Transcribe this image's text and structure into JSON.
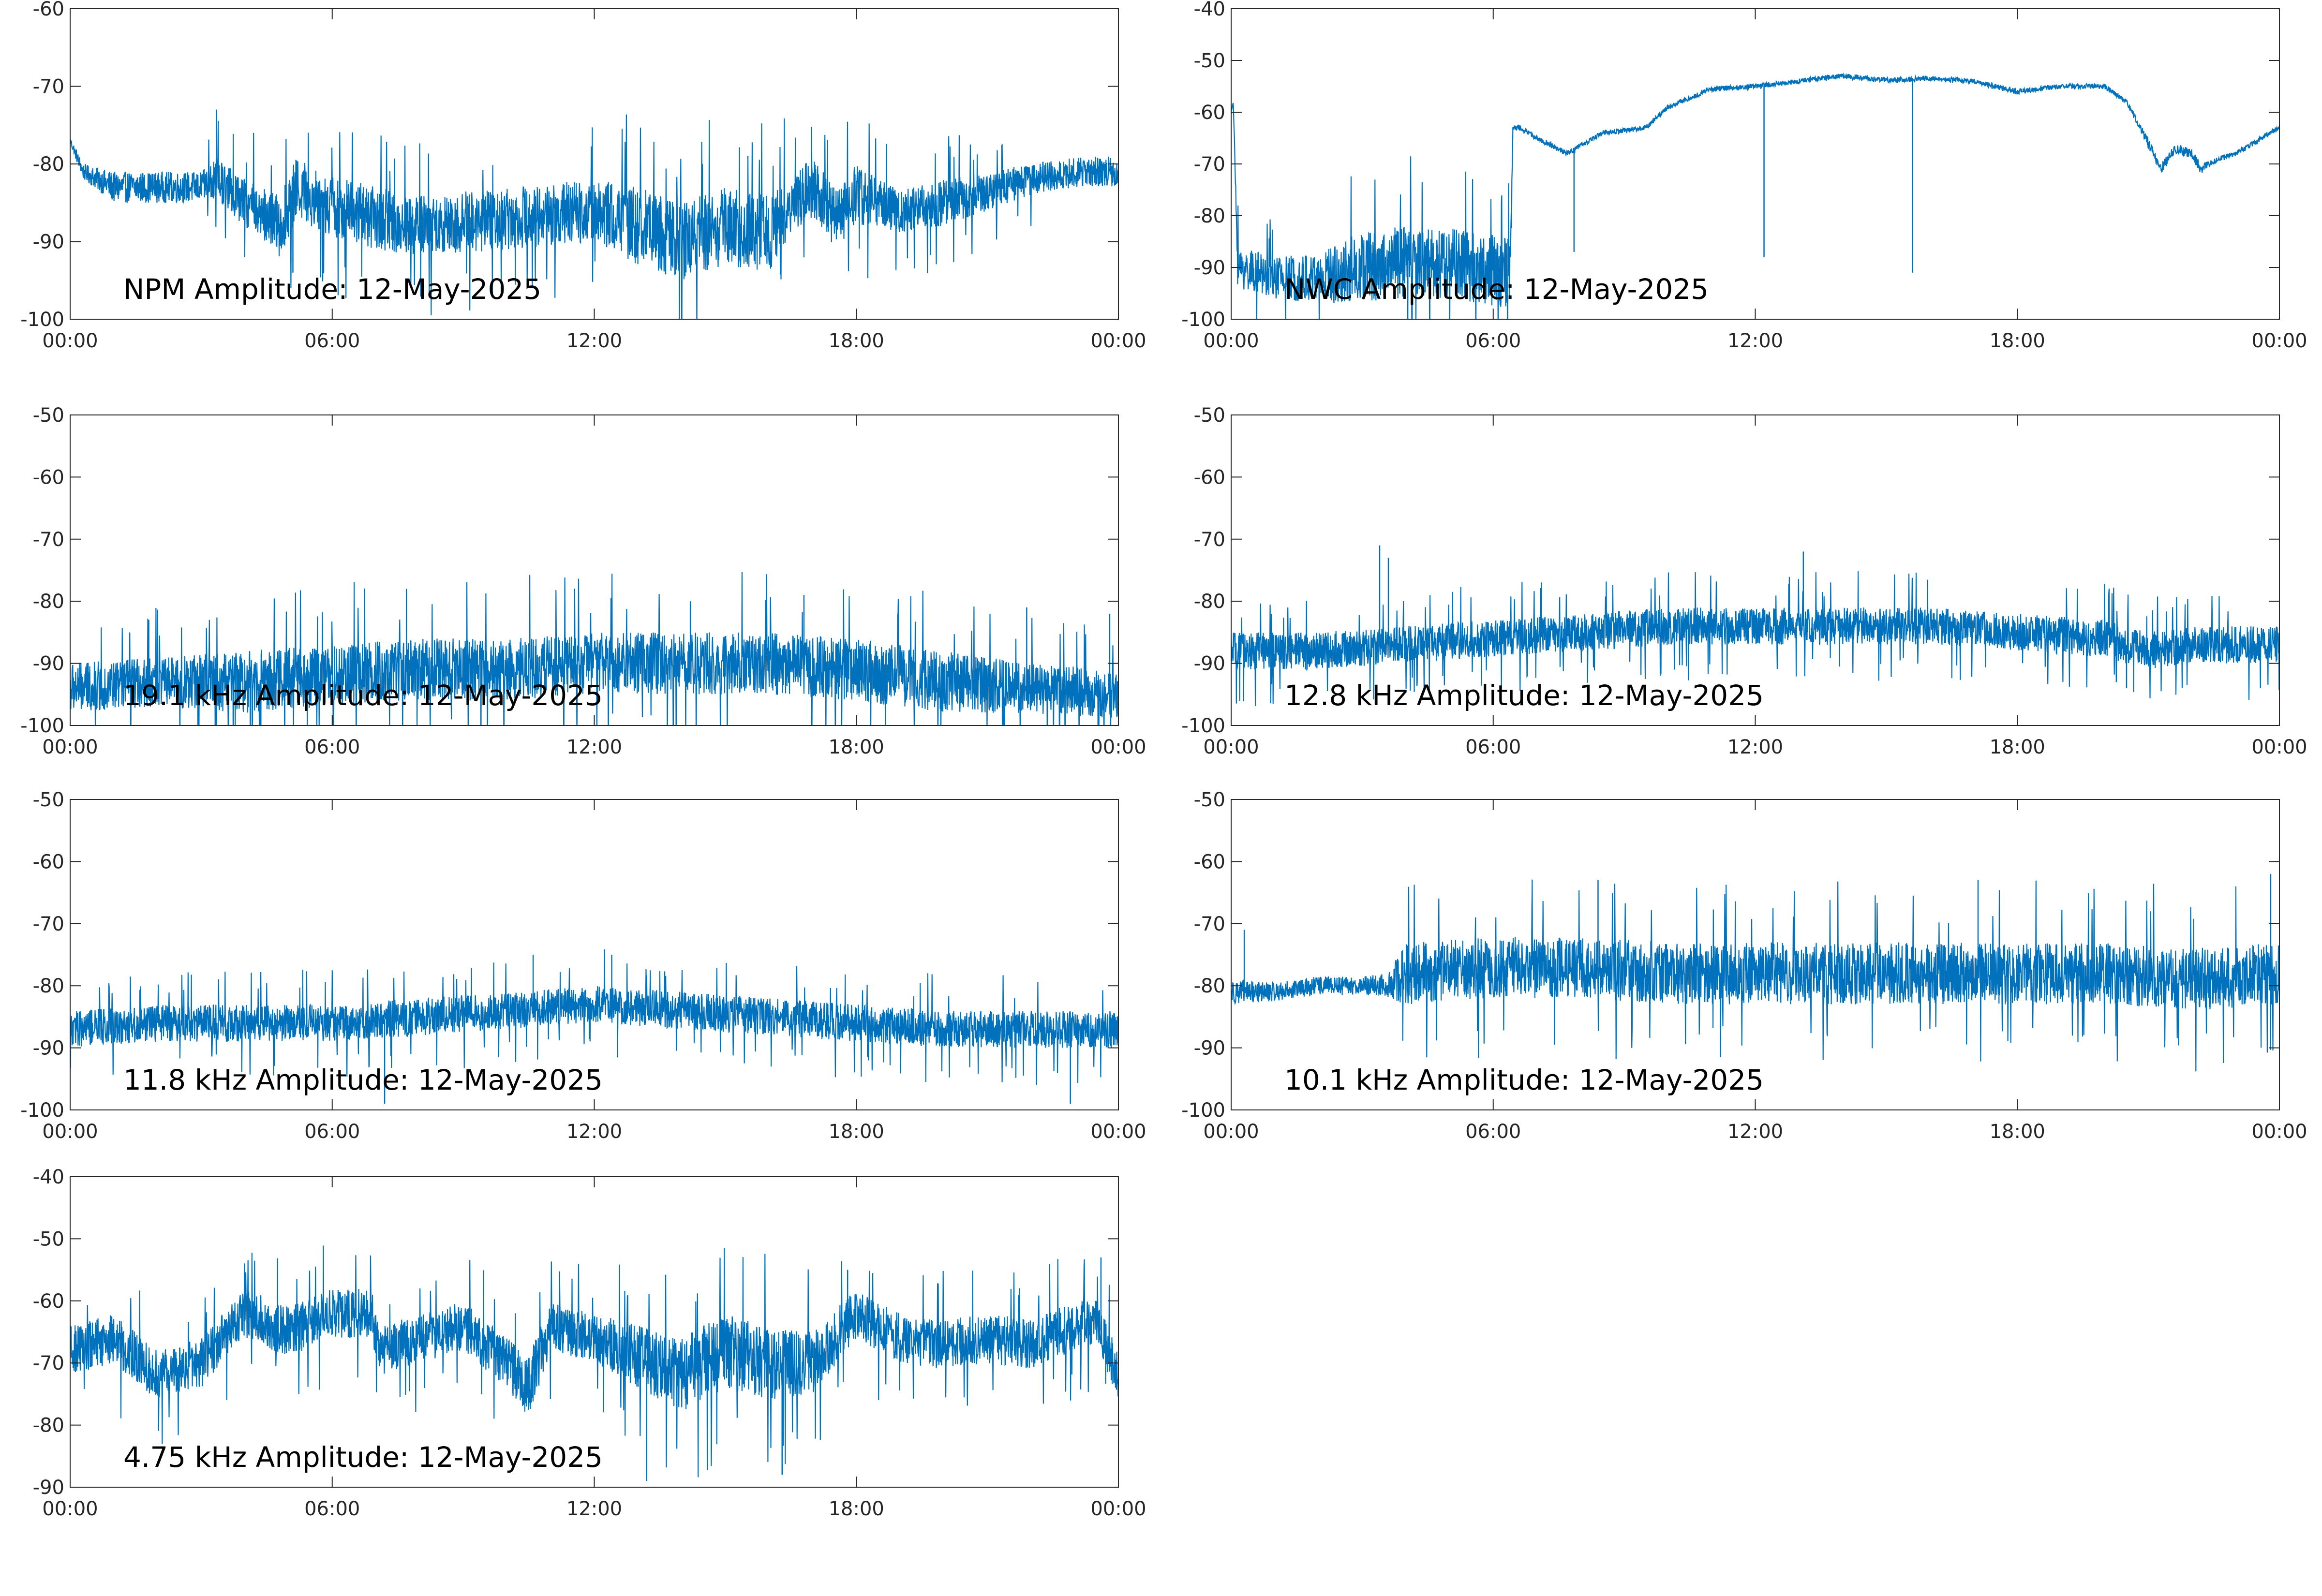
{
  "figure": {
    "background": "#ffffff",
    "line_color": "#0072bd",
    "axes_color": "#262626"
  },
  "chart_data": [
    {
      "type": "line",
      "annotation": "NPM Amplitude: 12-May-2025",
      "xlim": [
        "00:00",
        "00:00"
      ],
      "xticks": [
        "00:00",
        "06:00",
        "12:00",
        "18:00",
        "00:00"
      ],
      "ylim": [
        -100,
        -60
      ],
      "yticks": [
        -100,
        -90,
        -80,
        -70,
        -60
      ],
      "grid": false,
      "series": [
        {
          "x_hours": [
            0,
            0.3,
            1,
            2,
            3,
            3.4,
            4,
            4.8,
            5.2,
            5.8,
            7,
            8,
            10,
            12,
            13,
            14,
            15,
            16,
            16.5,
            17,
            17.5,
            18,
            18.5,
            19,
            20,
            22,
            23,
            24
          ],
          "values": [
            -77,
            -81,
            -83,
            -83,
            -83,
            -82,
            -85,
            -88,
            -83,
            -85,
            -87,
            -88,
            -87,
            -86,
            -88,
            -90,
            -88,
            -89,
            -85,
            -83,
            -87,
            -84,
            -85,
            -86,
            -85,
            -82,
            -81,
            -81
          ],
          "noise": [
            0.5,
            1,
            2,
            2,
            2,
            3,
            3,
            4,
            4,
            4,
            4,
            4,
            4,
            4,
            5,
            5,
            5,
            5,
            4,
            4,
            4,
            4,
            3,
            3,
            3,
            2,
            2,
            2
          ],
          "spikes": [
            {
              "h": 3.35,
              "v": -73
            },
            {
              "h": 5.1,
              "v": -94
            }
          ]
        }
      ]
    },
    {
      "type": "line",
      "annotation": "NWC Amplitude: 12-May-2025",
      "xlim": [
        "00:00",
        "00:00"
      ],
      "xticks": [
        "00:00",
        "06:00",
        "12:00",
        "18:00",
        "00:00"
      ],
      "ylim": [
        -100,
        -40
      ],
      "yticks": [
        -100,
        -90,
        -80,
        -70,
        -60,
        -50,
        -40
      ],
      "grid": false,
      "series": [
        {
          "x_hours": [
            0,
            0.05,
            0.15,
            1,
            2,
            3,
            4,
            5,
            6.4,
            6.45,
            6.6,
            7,
            7.7,
            8.5,
            9.5,
            10,
            11,
            12,
            13,
            14,
            15,
            16,
            17,
            18,
            19,
            20,
            20.5,
            21,
            21.3,
            21.6,
            22,
            22.2,
            22.6,
            23,
            24
          ],
          "values": [
            -60,
            -58,
            -90,
            -92,
            -92,
            -90,
            -89,
            -89,
            -91,
            -63,
            -63,
            -65,
            -68,
            -64,
            -63,
            -59,
            -55.5,
            -55,
            -54,
            -53,
            -53.8,
            -53.5,
            -54,
            -56,
            -55,
            -55,
            -58,
            -66,
            -71,
            -67,
            -68,
            -71,
            -69,
            -68,
            -63
          ],
          "noise": [
            0,
            0,
            4,
            4,
            5,
            7,
            7,
            7,
            7,
            0.5,
            0.5,
            0.5,
            0.5,
            0.5,
            0.5,
            0.5,
            0.5,
            0.5,
            0.5,
            0.5,
            0.5,
            0.5,
            0.5,
            0.5,
            0.5,
            0.5,
            0.5,
            1,
            1,
            1,
            1,
            1,
            0.5,
            0.5,
            0.5
          ],
          "spikes": [
            {
              "h": 7.85,
              "v": -87
            },
            {
              "h": 12.2,
              "v": -88
            },
            {
              "h": 15.6,
              "v": -91
            }
          ]
        }
      ]
    },
    {
      "type": "line",
      "annotation": "19.1 kHz Amplitude: 12-May-2025",
      "xlim": [
        "00:00",
        "00:00"
      ],
      "xticks": [
        "00:00",
        "06:00",
        "12:00",
        "18:00",
        "00:00"
      ],
      "ylim": [
        -100,
        -50
      ],
      "yticks": [
        -100,
        -90,
        -80,
        -70,
        -60,
        -50
      ],
      "grid": false,
      "series": [
        {
          "x_hours": [
            0,
            2,
            4,
            6,
            8,
            10,
            12,
            14,
            16,
            18,
            20,
            22,
            24
          ],
          "values": [
            -94,
            -93,
            -93,
            -92,
            -91,
            -91,
            -90,
            -90,
            -90,
            -91,
            -93,
            -94,
            -95
          ],
          "noise": [
            4,
            4,
            5,
            5,
            5,
            5,
            5,
            5,
            5,
            5,
            5,
            4,
            4
          ],
          "spikes": [
            {
              "h": 1.8,
              "v": -83
            },
            {
              "h": 7.7,
              "v": -78
            },
            {
              "h": 14.2,
              "v": -80
            },
            {
              "h": 16.8,
              "v": -79
            },
            {
              "h": 21.9,
              "v": -81
            },
            {
              "h": 23.8,
              "v": -82
            }
          ]
        }
      ]
    },
    {
      "type": "line",
      "annotation": "12.8 kHz Amplitude: 12-May-2025",
      "xlim": [
        "00:00",
        "00:00"
      ],
      "xticks": [
        "00:00",
        "06:00",
        "12:00",
        "18:00",
        "00:00"
      ],
      "ylim": [
        -100,
        -50
      ],
      "yticks": [
        -100,
        -90,
        -80,
        -70,
        -60,
        -50
      ],
      "grid": false,
      "series": [
        {
          "x_hours": [
            0,
            2,
            4,
            6,
            8,
            10,
            12,
            14,
            16,
            18,
            20,
            21,
            22,
            24
          ],
          "values": [
            -88,
            -88,
            -87,
            -86,
            -85,
            -84,
            -84,
            -84,
            -84,
            -85,
            -86,
            -88,
            -87,
            -87
          ],
          "noise": [
            3,
            3,
            3,
            3,
            3,
            3,
            3,
            3,
            3,
            3,
            3,
            3,
            3,
            3
          ],
          "spikes": [
            {
              "h": 3.4,
              "v": -71
            },
            {
              "h": 3.6,
              "v": -73
            },
            {
              "h": 13.1,
              "v": -72
            },
            {
              "h": 20.5,
              "v": -94
            }
          ]
        }
      ]
    },
    {
      "type": "line",
      "annotation": "11.8 kHz Amplitude: 12-May-2025",
      "xlim": [
        "00:00",
        "00:00"
      ],
      "xticks": [
        "00:00",
        "06:00",
        "12:00",
        "18:00",
        "00:00"
      ],
      "ylim": [
        -100,
        -50
      ],
      "yticks": [
        -100,
        -90,
        -80,
        -70,
        -60,
        -50
      ],
      "grid": false,
      "series": [
        {
          "x_hours": [
            0,
            2,
            4,
            6,
            8,
            10,
            12,
            14,
            16,
            18,
            20,
            22,
            24
          ],
          "values": [
            -87,
            -86,
            -86,
            -86,
            -85,
            -84,
            -83,
            -84,
            -85,
            -86,
            -87,
            -87,
            -87
          ],
          "noise": [
            3,
            3,
            3,
            3,
            3,
            3,
            3,
            3,
            3,
            3,
            3,
            3,
            3
          ],
          "spikes": [
            {
              "h": 10.6,
              "v": -75
            },
            {
              "h": 12.4,
              "v": -75
            },
            {
              "h": 7.2,
              "v": -99
            },
            {
              "h": 22.9,
              "v": -99
            }
          ]
        }
      ]
    },
    {
      "type": "line",
      "annotation": "10.1 kHz Amplitude: 12-May-2025",
      "xlim": [
        "00:00",
        "00:00"
      ],
      "xticks": [
        "00:00",
        "06:00",
        "12:00",
        "18:00",
        "00:00"
      ],
      "ylim": [
        -100,
        -50
      ],
      "yticks": [
        -100,
        -90,
        -80,
        -70,
        -60,
        -50
      ],
      "grid": false,
      "series": [
        {
          "x_hours": [
            0,
            1,
            2,
            3,
            3.6,
            4,
            6,
            8,
            10,
            12,
            14,
            16,
            18,
            20,
            22,
            24
          ],
          "values": [
            -81,
            -81,
            -80,
            -80,
            -80,
            -78,
            -77,
            -77,
            -78,
            -78,
            -78,
            -78,
            -78,
            -78,
            -79,
            -78
          ],
          "noise": [
            2,
            1.5,
            1.5,
            1.5,
            2,
            5,
            5,
            5,
            5,
            5,
            5,
            5,
            5,
            5,
            5,
            5
          ],
          "spikes": [
            {
              "h": 23.8,
              "v": -62
            },
            {
              "h": 17.1,
              "v": -63
            },
            {
              "h": 8.4,
              "v": -63
            },
            {
              "h": 0.3,
              "v": -71
            }
          ]
        }
      ]
    },
    {
      "type": "line",
      "annotation": "4.75 kHz Amplitude: 12-May-2025",
      "xlim": [
        "00:00",
        "00:00"
      ],
      "xticks": [
        "00:00",
        "06:00",
        "12:00",
        "18:00",
        "00:00"
      ],
      "ylim": [
        -90,
        -40
      ],
      "yticks": [
        -90,
        -80,
        -70,
        -60,
        -50,
        -40
      ],
      "grid": false,
      "series": [
        {
          "x_hours": [
            0,
            1,
            2,
            3,
            4,
            5,
            6,
            6.9,
            7.1,
            8,
            9,
            10,
            10.5,
            11,
            12,
            13,
            14,
            15,
            16,
            17,
            18,
            19,
            20,
            21,
            22,
            23,
            23.5,
            24
          ],
          "values": [
            -68,
            -66,
            -72,
            -70,
            -62,
            -65,
            -62,
            -62,
            -68,
            -66,
            -64,
            -70,
            -74,
            -64,
            -66,
            -69,
            -72,
            -68,
            -70,
            -70,
            -62,
            -66,
            -67,
            -66,
            -67,
            -64,
            -63,
            -72
          ],
          "noise": [
            4,
            4,
            4,
            4,
            4,
            4,
            4,
            4,
            4,
            4,
            4,
            4,
            5,
            4,
            4,
            5,
            6,
            6,
            6,
            5,
            4,
            4,
            4,
            4,
            4,
            4,
            4,
            4
          ],
          "spikes": [
            {
              "h": 23.6,
              "v": -53
            },
            {
              "h": 13.2,
              "v": -89
            },
            {
              "h": 16.3,
              "v": -88
            },
            {
              "h": 17.8,
              "v": -55
            }
          ]
        }
      ]
    }
  ]
}
